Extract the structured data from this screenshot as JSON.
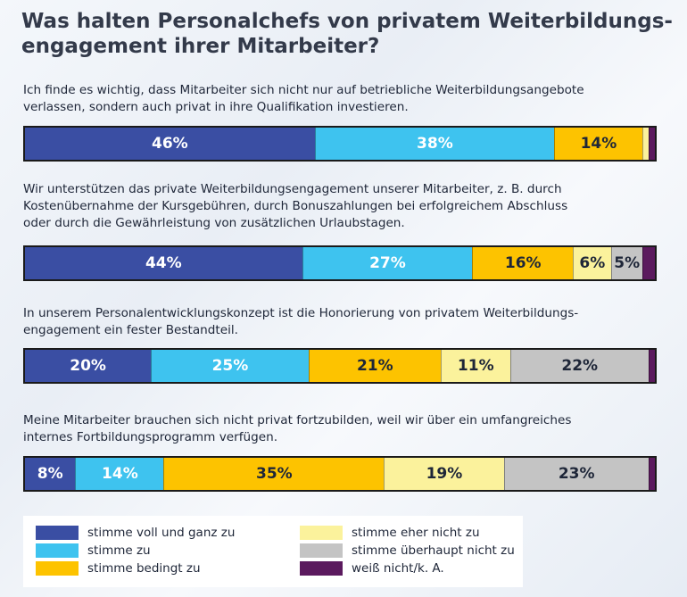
{
  "title_line1": "Was halten Personalchefs von privatem Weiterbildungs-",
  "title_line2": "engagement ihrer Mitarbeiter?",
  "chart_data": {
    "type": "bar",
    "orientation": "horizontal-stacked-100",
    "title": "Was halten Personalchefs von privatem Weiterbildungsengagement ihrer Mitarbeiter?",
    "unit": "%",
    "categories": [
      "Ich finde es wichtig, dass Mitarbeiter sich nicht nur auf betriebliche Weiterbildungsangebote verlassen, sondern auch privat in ihre Qualifikation investieren.",
      "Wir unterstützen das private Weiterbildungsengagement unserer Mitarbeiter, z. B. durch Kostenübernahme der Kursgebühren, durch Bonuszahlungen bei erfolgreichem Abschluss oder durch die Gewährleistung von zusätzlichen Urlaubstagen.",
      "In unserem Personalentwicklungskonzept ist die Honorierung von privatem Weiterbildungsengagement ein fester Bestandteil.",
      "Meine Mitarbeiter brauchen sich nicht privat fortzubilden, weil wir über ein umfangreiches internes Fortbildungsprogramm verfügen."
    ],
    "series": [
      {
        "name": "stimme voll und ganz zu",
        "color": "#3a4ea3",
        "label_color": "#ffffff",
        "values": [
          46,
          44,
          20,
          8
        ]
      },
      {
        "name": "stimme zu",
        "color": "#3ec3ef",
        "label_color": "#ffffff",
        "values": [
          38,
          27,
          25,
          14
        ]
      },
      {
        "name": "stimme bedingt zu",
        "color": "#fdc300",
        "label_color": "#1e2638",
        "values": [
          14,
          16,
          21,
          35
        ]
      },
      {
        "name": "stimme eher nicht zu",
        "color": "#fbf29c",
        "label_color": "#1e2638",
        "values": [
          1,
          6,
          11,
          19
        ]
      },
      {
        "name": "stimme überhaupt nicht zu",
        "color": "#c4c4c4",
        "label_color": "#1e2638",
        "values": [
          0,
          5,
          22,
          23
        ]
      },
      {
        "name": "weiß nicht/k. A.",
        "color": "#5b1a5e",
        "label_color": "#ffffff",
        "values": [
          1,
          2,
          1,
          1
        ]
      }
    ],
    "labels": [
      [
        "46%",
        "38%",
        "14%",
        "",
        "",
        ""
      ],
      [
        "44%",
        "27%",
        "16%",
        "6%",
        "5%",
        ""
      ],
      [
        "20%",
        "25%",
        "21%",
        "11%",
        "22%",
        ""
      ],
      [
        "8%",
        "14%",
        "35%",
        "19%",
        "23%",
        ""
      ]
    ],
    "question_lines": [
      [
        "Ich finde es wichtig, dass Mitarbeiter sich nicht nur auf betriebliche Weiterbildungsangebote",
        "verlassen, sondern auch privat in ihre Qualifikation investieren."
      ],
      [
        "Wir unterstützen das private Weiterbildungsengagement unserer Mitarbeiter, z. B. durch",
        "Kostenübernahme der Kursgebühren, durch Bonuszahlungen bei erfolgreichem Abschluss",
        "oder durch die Gewährleistung von zusätzlichen Urlaubstagen."
      ],
      [
        "In unserem Personalentwicklungskonzept ist die Honorierung von privatem Weiterbildungs-",
        "engagement ein fester Bestandteil."
      ],
      [
        "Meine Mitarbeiter brauchen sich nicht privat fortzubilden, weil wir über ein umfangreiches",
        "internes Fortbildungsprogramm verfügen."
      ]
    ],
    "legend_position": "bottom"
  }
}
